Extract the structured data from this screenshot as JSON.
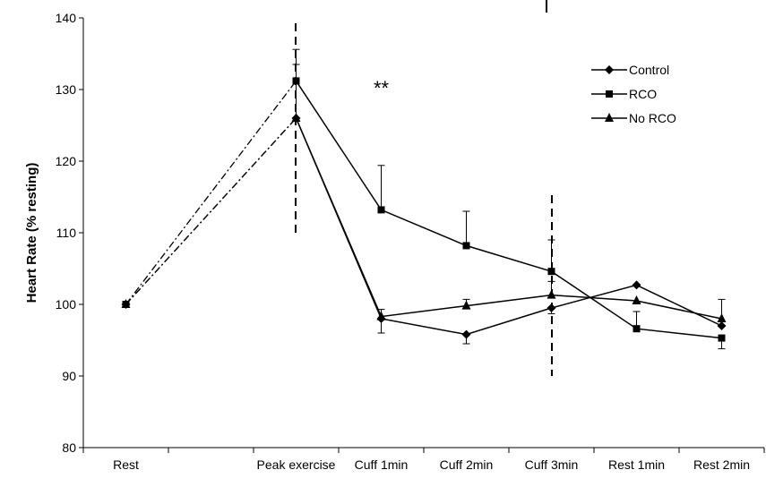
{
  "chart_data": {
    "type": "line",
    "y_label": "Heart Rate (% resting)",
    "categories": [
      "Rest",
      null,
      "Peak exercise",
      "Cuff 1min",
      "Cuff 2min",
      "Cuff 3min",
      "Rest 1min",
      "Rest 2min"
    ],
    "ylim": [
      80,
      140
    ],
    "yticks": [
      80,
      90,
      100,
      110,
      120,
      130,
      140
    ],
    "legend": "upper right",
    "annotation": "**",
    "series": [
      {
        "name": "Control",
        "color": "#000000",
        "marker": "diamond",
        "values": [
          100,
          null,
          126,
          98,
          95.8,
          99.5,
          102.7,
          97
        ],
        "errors_up": [
          null,
          null,
          null,
          null,
          null,
          null,
          null,
          null
        ],
        "errors_down": [
          null,
          null,
          null,
          2,
          1.3,
          0.8,
          null,
          null
        ]
      },
      {
        "name": "RCO",
        "color": "#000000",
        "marker": "square",
        "values": [
          100,
          null,
          131.2,
          113.2,
          108.2,
          104.6,
          96.6,
          95.3
        ],
        "errors_up": [
          null,
          null,
          4.4,
          6.2,
          4.8,
          4.4,
          2.4,
          null
        ],
        "errors_down": [
          null,
          null,
          null,
          null,
          null,
          null,
          null,
          1.5
        ]
      },
      {
        "name": "No RCO",
        "color": "#000000",
        "marker": "triangle",
        "values": [
          100,
          null,
          126,
          98.3,
          99.8,
          101.3,
          100.5,
          98
        ],
        "errors_up": [
          null,
          null,
          7.5,
          1,
          0.9,
          1.9,
          null,
          2.7
        ],
        "errors_down": [
          null,
          null,
          null,
          null,
          null,
          null,
          null,
          null
        ]
      }
    ]
  }
}
